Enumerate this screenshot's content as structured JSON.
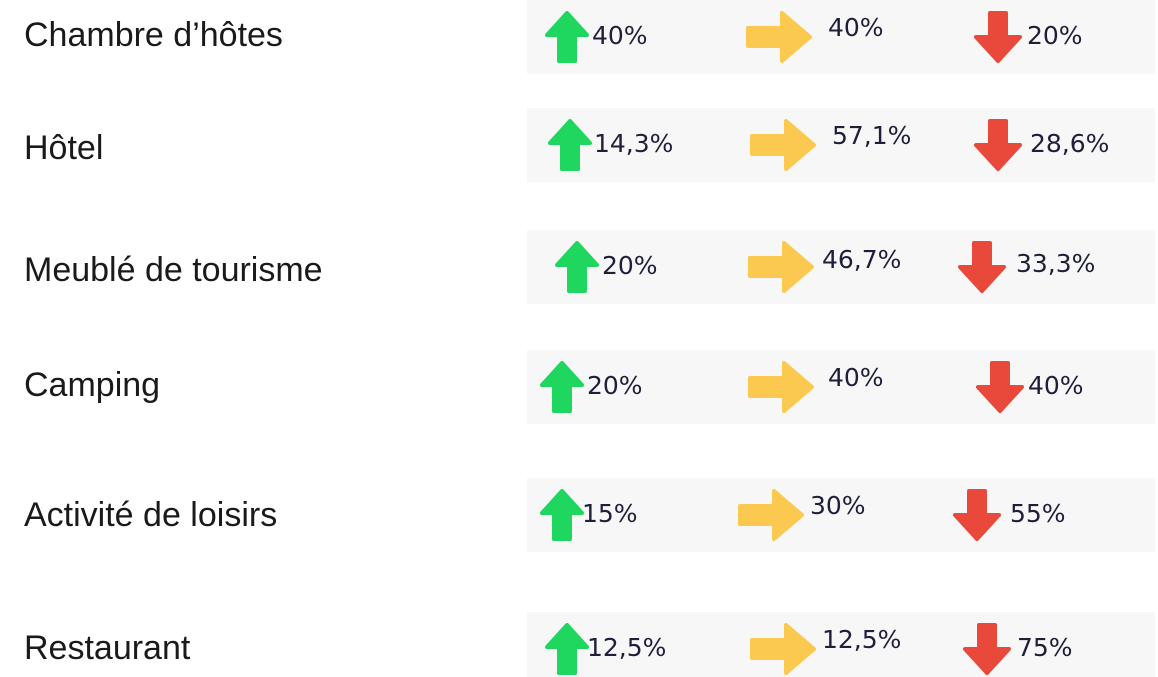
{
  "rows": [
    {
      "label": "Chambre d’hôtes",
      "up": "40%",
      "stable": "40%",
      "down": "20%"
    },
    {
      "label": "Hôtel",
      "up": "14,3%",
      "stable": "57,1%",
      "down": "28,6%"
    },
    {
      "label": "Meublé de tourisme",
      "up": "20%",
      "stable": "46,7%",
      "down": "33,3%"
    },
    {
      "label": "Camping",
      "up": "20%",
      "stable": "40%",
      "down": "40%"
    },
    {
      "label": "Activité de loisirs",
      "up": "15%",
      "stable": "30%",
      "down": "55%"
    },
    {
      "label": "Restaurant",
      "up": "12,5%",
      "stable": "12,5%",
      "down": "75%"
    }
  ]
}
